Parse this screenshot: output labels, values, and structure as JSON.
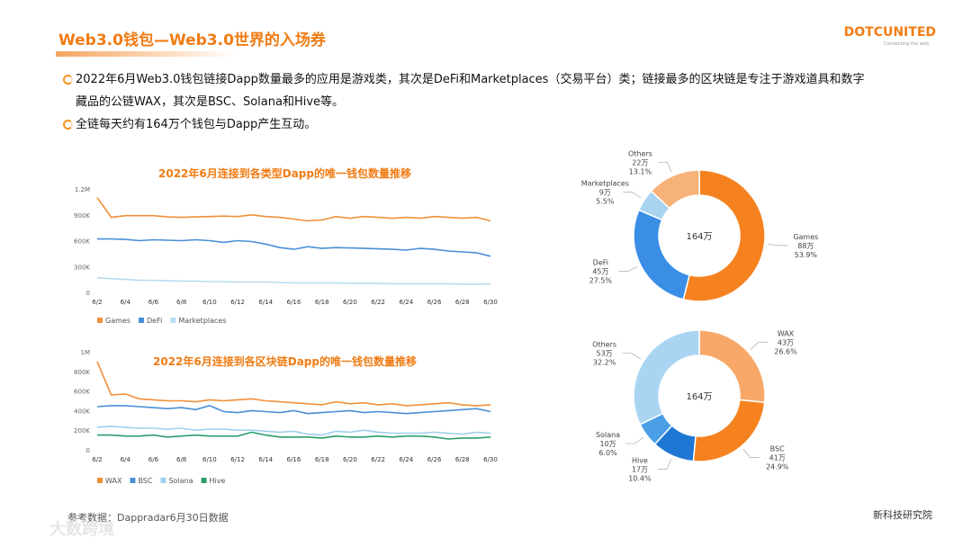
{
  "header": {
    "title": "Web3.0钱包—Web3.0世界的入场券"
  },
  "logo": {
    "name": "DOTCUNITED",
    "tagline": "Connecting the web"
  },
  "bullets": [
    "2022年6月Web3.0钱包链接Dapp数量最多的应用是游戏类，其次是DeFi和Marketplaces（交易平台）类；链接最多的区块链是专注于游戏道具和数字藏品的公链WAX，其次是BSC、Solana和Hive等。",
    "全链每天约有164万个钱包与Dapp产生互动。"
  ],
  "footer": {
    "source": "参考数据：Dappradar6月30日数据",
    "org": "新科技研究院",
    "watermark": "大数跨境"
  },
  "chart_data": [
    {
      "type": "line",
      "title": "2022年6月连接到各类型Dapp的唯一钱包数量推移",
      "categories": [
        "6/2",
        null,
        "6/4",
        null,
        "6/6",
        null,
        "6/8",
        null,
        "6/10",
        null,
        "6/12",
        null,
        "6/14",
        null,
        "6/16",
        null,
        "6/18",
        null,
        "6/20",
        null,
        "6/22",
        null,
        "6/24",
        null,
        "6/26",
        null,
        "6/28",
        null,
        "6/30"
      ],
      "ylim": [
        0,
        1200000
      ],
      "yticks": [
        0,
        {
          "value": 300000,
          "label": "300K"
        },
        {
          "value": 600000,
          "label": "600K"
        },
        {
          "value": 900000,
          "label": "900K"
        },
        {
          "value": 1200000,
          "label": "1.2M"
        }
      ],
      "series": [
        {
          "name": "Games",
          "color": "#f0903a",
          "values": [
            1100000,
            870000,
            890000,
            890000,
            890000,
            875000,
            870000,
            875000,
            880000,
            885000,
            880000,
            900000,
            880000,
            870000,
            850000,
            830000,
            840000,
            880000,
            860000,
            880000,
            870000,
            860000,
            870000,
            860000,
            880000,
            870000,
            860000,
            870000,
            830000
          ]
        },
        {
          "name": "DeFi",
          "color": "#4a8fd6",
          "values": [
            620000,
            620000,
            615000,
            600000,
            610000,
            605000,
            600000,
            610000,
            600000,
            580000,
            600000,
            590000,
            560000,
            520000,
            500000,
            530000,
            510000,
            520000,
            515000,
            510000,
            505000,
            500000,
            490000,
            510000,
            500000,
            480000,
            470000,
            460000,
            420000
          ]
        },
        {
          "name": "Marketplaces",
          "color": "#b8dcf2",
          "values": [
            170000,
            160000,
            150000,
            140000,
            140000,
            135000,
            130000,
            130000,
            125000,
            125000,
            120000,
            120000,
            120000,
            115000,
            110000,
            110000,
            110000,
            110000,
            105000,
            105000,
            105000,
            100000,
            100000,
            100000,
            100000,
            100000,
            95000,
            95000,
            100000
          ]
        }
      ]
    },
    {
      "type": "line",
      "title": "2022年6月连接到各区块链Dapp的唯一钱包数量推移",
      "categories": [
        "6/2",
        null,
        "6/4",
        null,
        "6/6",
        null,
        "6/8",
        null,
        "6/10",
        null,
        "6/12",
        null,
        "6/14",
        null,
        "6/16",
        null,
        "6/18",
        null,
        "6/20",
        null,
        "6/22",
        null,
        "6/24",
        null,
        "6/26",
        null,
        "6/28",
        null,
        "6/30"
      ],
      "ylim": [
        0,
        1000000
      ],
      "yticks": [
        0,
        {
          "value": 200000,
          "label": "200K"
        },
        {
          "value": 400000,
          "label": "400K"
        },
        {
          "value": 600000,
          "label": "600K"
        },
        {
          "value": 800000,
          "label": "800K"
        },
        {
          "value": 1000000,
          "label": "1M"
        }
      ],
      "series": [
        {
          "name": "WAX",
          "color": "#f0903a",
          "values": [
            900000,
            560000,
            570000,
            520000,
            510000,
            500000,
            500000,
            490000,
            510000,
            500000,
            510000,
            520000,
            500000,
            490000,
            480000,
            470000,
            460000,
            490000,
            470000,
            480000,
            460000,
            470000,
            450000,
            460000,
            470000,
            480000,
            460000,
            450000,
            460000
          ]
        },
        {
          "name": "BSC",
          "color": "#4a8fd6",
          "values": [
            440000,
            450000,
            450000,
            440000,
            430000,
            420000,
            430000,
            410000,
            450000,
            390000,
            380000,
            400000,
            390000,
            380000,
            400000,
            370000,
            380000,
            390000,
            400000,
            380000,
            390000,
            380000,
            370000,
            380000,
            390000,
            400000,
            410000,
            420000,
            390000
          ]
        },
        {
          "name": "Solana",
          "color": "#9fd0ec",
          "values": [
            230000,
            240000,
            230000,
            220000,
            220000,
            210000,
            220000,
            200000,
            210000,
            210000,
            200000,
            200000,
            190000,
            180000,
            190000,
            160000,
            150000,
            190000,
            180000,
            200000,
            180000,
            170000,
            170000,
            170000,
            180000,
            170000,
            160000,
            180000,
            170000
          ]
        },
        {
          "name": "Hive",
          "color": "#2a9d6a",
          "values": [
            150000,
            150000,
            140000,
            140000,
            150000,
            130000,
            140000,
            150000,
            140000,
            140000,
            140000,
            180000,
            150000,
            130000,
            130000,
            130000,
            120000,
            140000,
            130000,
            130000,
            140000,
            130000,
            140000,
            140000,
            130000,
            110000,
            120000,
            120000,
            130000
          ]
        }
      ]
    },
    {
      "type": "donut",
      "center_label": "164万",
      "categories": [
        "Games",
        "DeFi",
        "Marketplaces",
        "Others"
      ],
      "values": [
        53.9,
        27.5,
        5.5,
        13.1
      ],
      "value_labels": [
        "53.9%",
        "27.5%",
        "5.5%",
        "13.1%"
      ],
      "amounts": [
        88,
        45,
        9,
        22
      ],
      "amount_labels": [
        "88万",
        "45万",
        "9万",
        "22万"
      ],
      "colors": [
        "#f5821f",
        "#3a8ee6",
        "#a8d4f0",
        "#f7b27a"
      ]
    },
    {
      "type": "donut",
      "center_label": "164万",
      "categories": [
        "WAX",
        "BSC",
        "Hive",
        "Solana",
        "Others"
      ],
      "values": [
        26.6,
        24.9,
        10.4,
        6.0,
        32.2
      ],
      "value_labels": [
        "26.6%",
        "24.9%",
        "10.4%",
        "6.0%",
        "32.2%"
      ],
      "amounts": [
        43,
        41,
        17,
        10,
        53
      ],
      "amount_labels": [
        "43万",
        "41万",
        "17万",
        "10万",
        "53万"
      ],
      "colors": [
        "#f7a868",
        "#f5821f",
        "#1f77d4",
        "#4a9ee6",
        "#a9d5f2"
      ]
    }
  ]
}
